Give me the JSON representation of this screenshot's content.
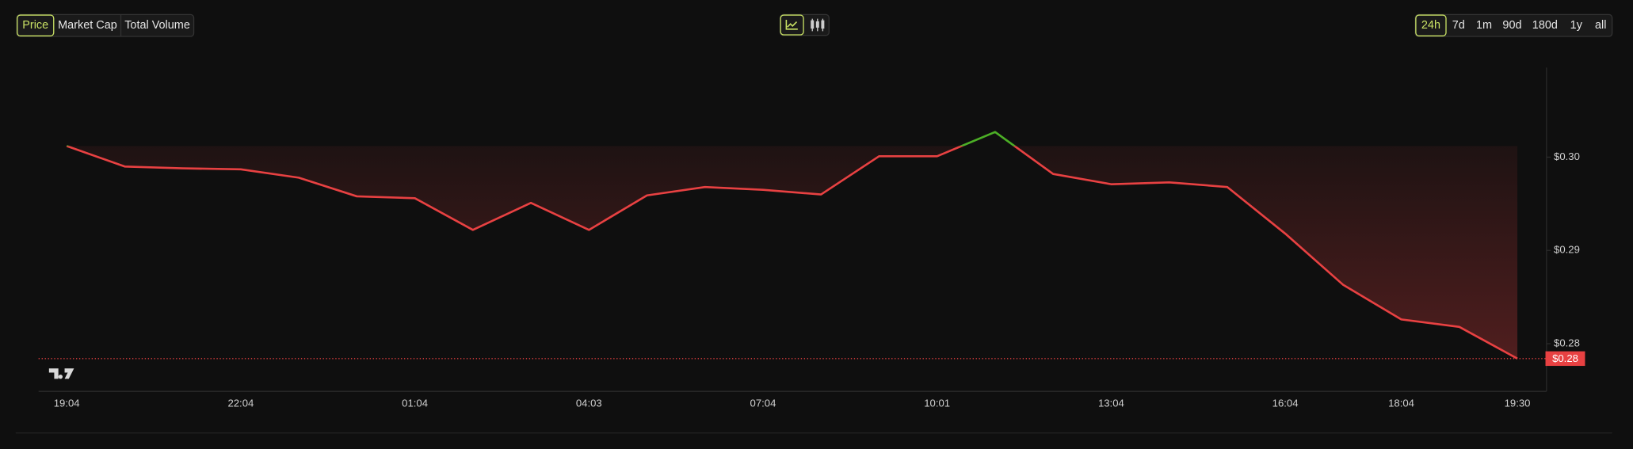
{
  "controls": {
    "metrics": [
      "Price",
      "Market Cap",
      "Total Volume"
    ],
    "intervals": [
      "24h",
      "7d",
      "1m",
      "90d",
      "180d",
      "1y",
      "all"
    ]
  },
  "chart_data": {
    "type": "line",
    "categories": [
      "19:04",
      null,
      null,
      "22:04",
      null,
      null,
      "01:04",
      null,
      null,
      "04:03",
      null,
      null,
      "07:04",
      null,
      null,
      "10:01",
      null,
      null,
      "13:04",
      null,
      null,
      "16:04",
      null,
      "18:04",
      null,
      "19:30"
    ],
    "series": [
      {
        "color": "#e84142",
        "up_color": "#4caf26",
        "values": [
          0.3012,
          0.299,
          0.2988,
          0.2987,
          0.2978,
          0.2958,
          0.2956,
          0.2922,
          0.2951,
          0.2922,
          0.2959,
          0.2968,
          0.2965,
          0.296,
          0.3001,
          0.3001,
          0.3027,
          0.2982,
          0.2971,
          0.2973,
          0.2968,
          0.2918,
          0.2863,
          0.2826,
          0.2818,
          0.2784
        ]
      }
    ],
    "last_value_label": "$0.28",
    "ylim": [
      0.275,
      0.3096
    ],
    "yticks": [
      {
        "value": 0.28,
        "label": "$0.28"
      },
      {
        "value": 0.29,
        "label": "$0.29"
      },
      {
        "value": 0.3,
        "label": "$0.30"
      }
    ]
  }
}
